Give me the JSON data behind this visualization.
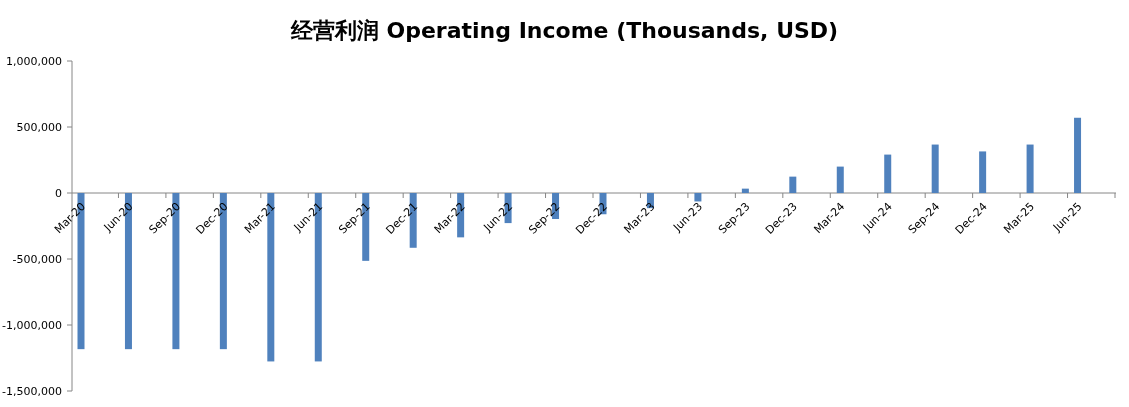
{
  "chart_data": {
    "type": "bar",
    "title": "经营利润 Operating Income (Thousands, USD)",
    "categories": [
      "Mar-20",
      "Jun-20",
      "Sep-20",
      "Dec-20",
      "Mar-21",
      "Jun-21",
      "Sep-21",
      "Dec-21",
      "Mar-22",
      "Jun-22",
      "Sep-22",
      "Dec-22",
      "Mar-23",
      "Jun-23",
      "Sep-23",
      "Dec-23",
      "Mar-24",
      "Jun-24",
      "Sep-24",
      "Dec-24",
      "Mar-25",
      "Jun-25"
    ],
    "series": [
      {
        "color": "#4f81bd",
        "values": [
          -1183000,
          -1183000,
          -1183000,
          -1183000,
          -1276000,
          -1276000,
          -514000,
          -415000,
          -336000,
          -228000,
          -197000,
          -161000,
          -115000,
          -64000,
          33000,
          124000,
          200000,
          291000,
          367000,
          315000,
          367000,
          570000
        ]
      }
    ],
    "ylim": [
      -1500000,
      1000000
    ],
    "yticks": [
      {
        "value": -1500000,
        "label": "-1,500,000"
      },
      {
        "value": -1000000,
        "label": "-1,000,000"
      },
      {
        "value": -500000,
        "label": "-500,000"
      },
      {
        "value": 0,
        "label": "0"
      },
      {
        "value": 500000,
        "label": "500,000"
      },
      {
        "value": 1000000,
        "label": "1,000,000"
      }
    ],
    "grid": false
  }
}
